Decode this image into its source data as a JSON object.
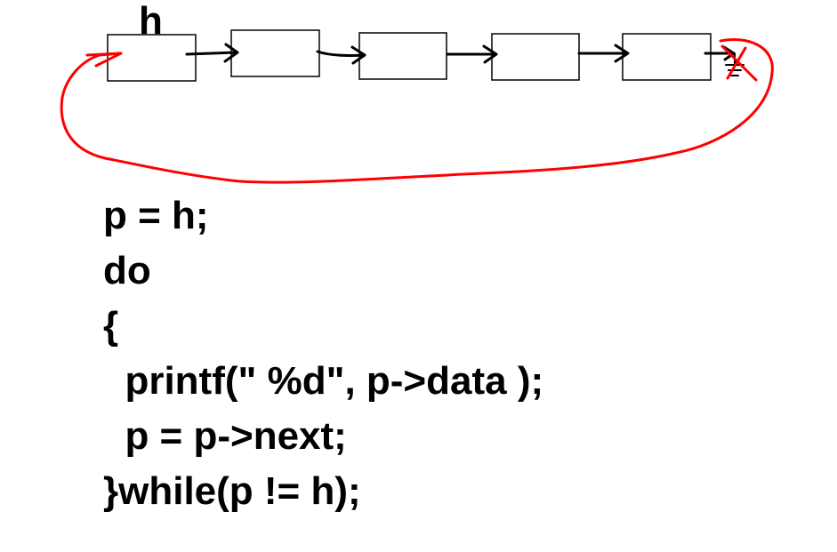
{
  "diagram": {
    "head_label": "h",
    "node_count": 5,
    "null_terminator_crossed_out": true,
    "loop_back_arrow": "last node points back to first node (h)",
    "colors": {
      "nodes": "#000000",
      "loop_arrow": "#ff0000",
      "background": "#ffffff"
    }
  },
  "code": {
    "lines": [
      "p = h;",
      "do",
      "{",
      "  printf(\" %d\", p->data );",
      "  p = p->next;",
      "}while(p != h);"
    ]
  }
}
